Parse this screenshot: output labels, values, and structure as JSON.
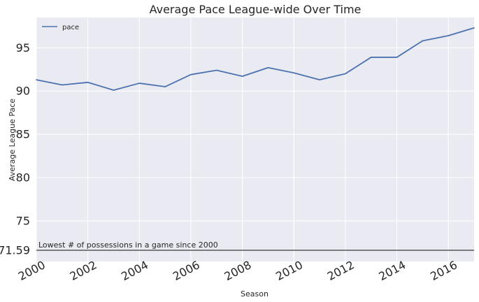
{
  "chart_data": {
    "type": "line",
    "title": "Average Pace League-wide Over Time",
    "xlabel": "Season",
    "ylabel": "Average League Pace",
    "xlim": [
      2000,
      2017
    ],
    "ylim": [
      70.3,
      98.5
    ],
    "x_ticks": [
      "2000",
      "2002",
      "2004",
      "2006",
      "2008",
      "2010",
      "2012",
      "2014",
      "2016"
    ],
    "y_ticks": [
      "71.59",
      "75",
      "80",
      "85",
      "90",
      "95"
    ],
    "grid": true,
    "legend_position": "top-left",
    "series": [
      {
        "name": "pace",
        "color": "#4c72b0",
        "x": [
          2000,
          2001,
          2002,
          2003,
          2004,
          2005,
          2006,
          2007,
          2008,
          2009,
          2010,
          2011,
          2012,
          2013,
          2014,
          2015,
          2016,
          2017
        ],
        "y": [
          91.3,
          90.7,
          91.0,
          90.1,
          90.9,
          90.5,
          91.9,
          92.4,
          91.7,
          92.7,
          92.1,
          91.3,
          92.0,
          93.9,
          93.9,
          95.8,
          96.4,
          97.3
        ]
      }
    ],
    "reference_line": {
      "value": 71.59,
      "label": "Lowest # of possessions in a game since 2000",
      "color": "#3a3a3a"
    }
  }
}
